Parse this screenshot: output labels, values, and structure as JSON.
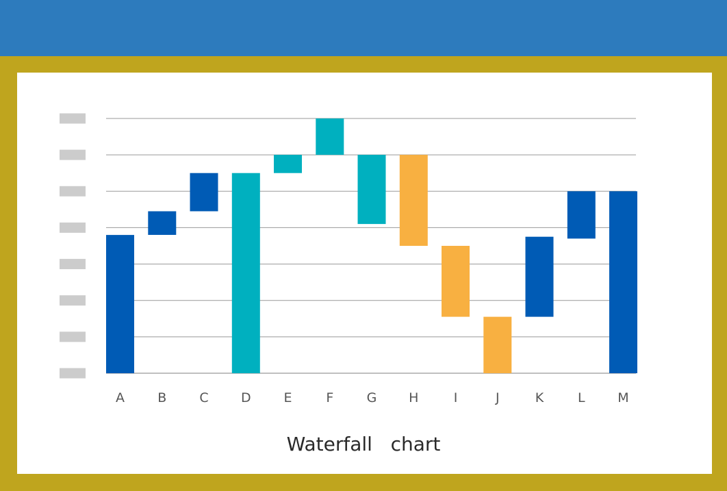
{
  "colors": {
    "header": "#2d7bbd",
    "frame": "#bfa51e",
    "panel": "#ffffff",
    "gridline": "#999999",
    "placeholder": "#cccccc"
  },
  "chart_data": {
    "type": "bar",
    "subtype": "waterfall",
    "title": "Waterfall   chart",
    "categories": [
      "A",
      "B",
      "C",
      "D",
      "E",
      "F",
      "G",
      "H",
      "I",
      "J",
      "K",
      "L",
      "M"
    ],
    "ylim": [
      0,
      7
    ],
    "y_tick_count": 8,
    "y_tick_labels_visible": false,
    "grid": true,
    "bars": [
      {
        "category": "A",
        "start": 0,
        "end": 3.8,
        "color": "#005bb5"
      },
      {
        "category": "B",
        "start": 3.8,
        "end": 4.45,
        "color": "#005bb5"
      },
      {
        "category": "C",
        "start": 4.45,
        "end": 5.5,
        "color": "#005bb5"
      },
      {
        "category": "D",
        "start": 0,
        "end": 5.5,
        "color": "#00b0bf"
      },
      {
        "category": "E",
        "start": 5.5,
        "end": 6.0,
        "color": "#00b0bf"
      },
      {
        "category": "F",
        "start": 6.0,
        "end": 7.0,
        "color": "#00b0bf"
      },
      {
        "category": "G",
        "start": 6.0,
        "end": 4.1,
        "color": "#00b0bf"
      },
      {
        "category": "H",
        "start": 6.0,
        "end": 3.5,
        "color": "#f8b041"
      },
      {
        "category": "I",
        "start": 3.5,
        "end": 1.55,
        "color": "#f8b041"
      },
      {
        "category": "J",
        "start": 1.55,
        "end": 0,
        "color": "#f8b041"
      },
      {
        "category": "K",
        "start": 1.55,
        "end": 3.75,
        "color": "#005bb5"
      },
      {
        "category": "L",
        "start": 3.7,
        "end": 5.0,
        "color": "#005bb5"
      },
      {
        "category": "M",
        "start": 0,
        "end": 5.0,
        "color": "#005bb5"
      }
    ]
  }
}
